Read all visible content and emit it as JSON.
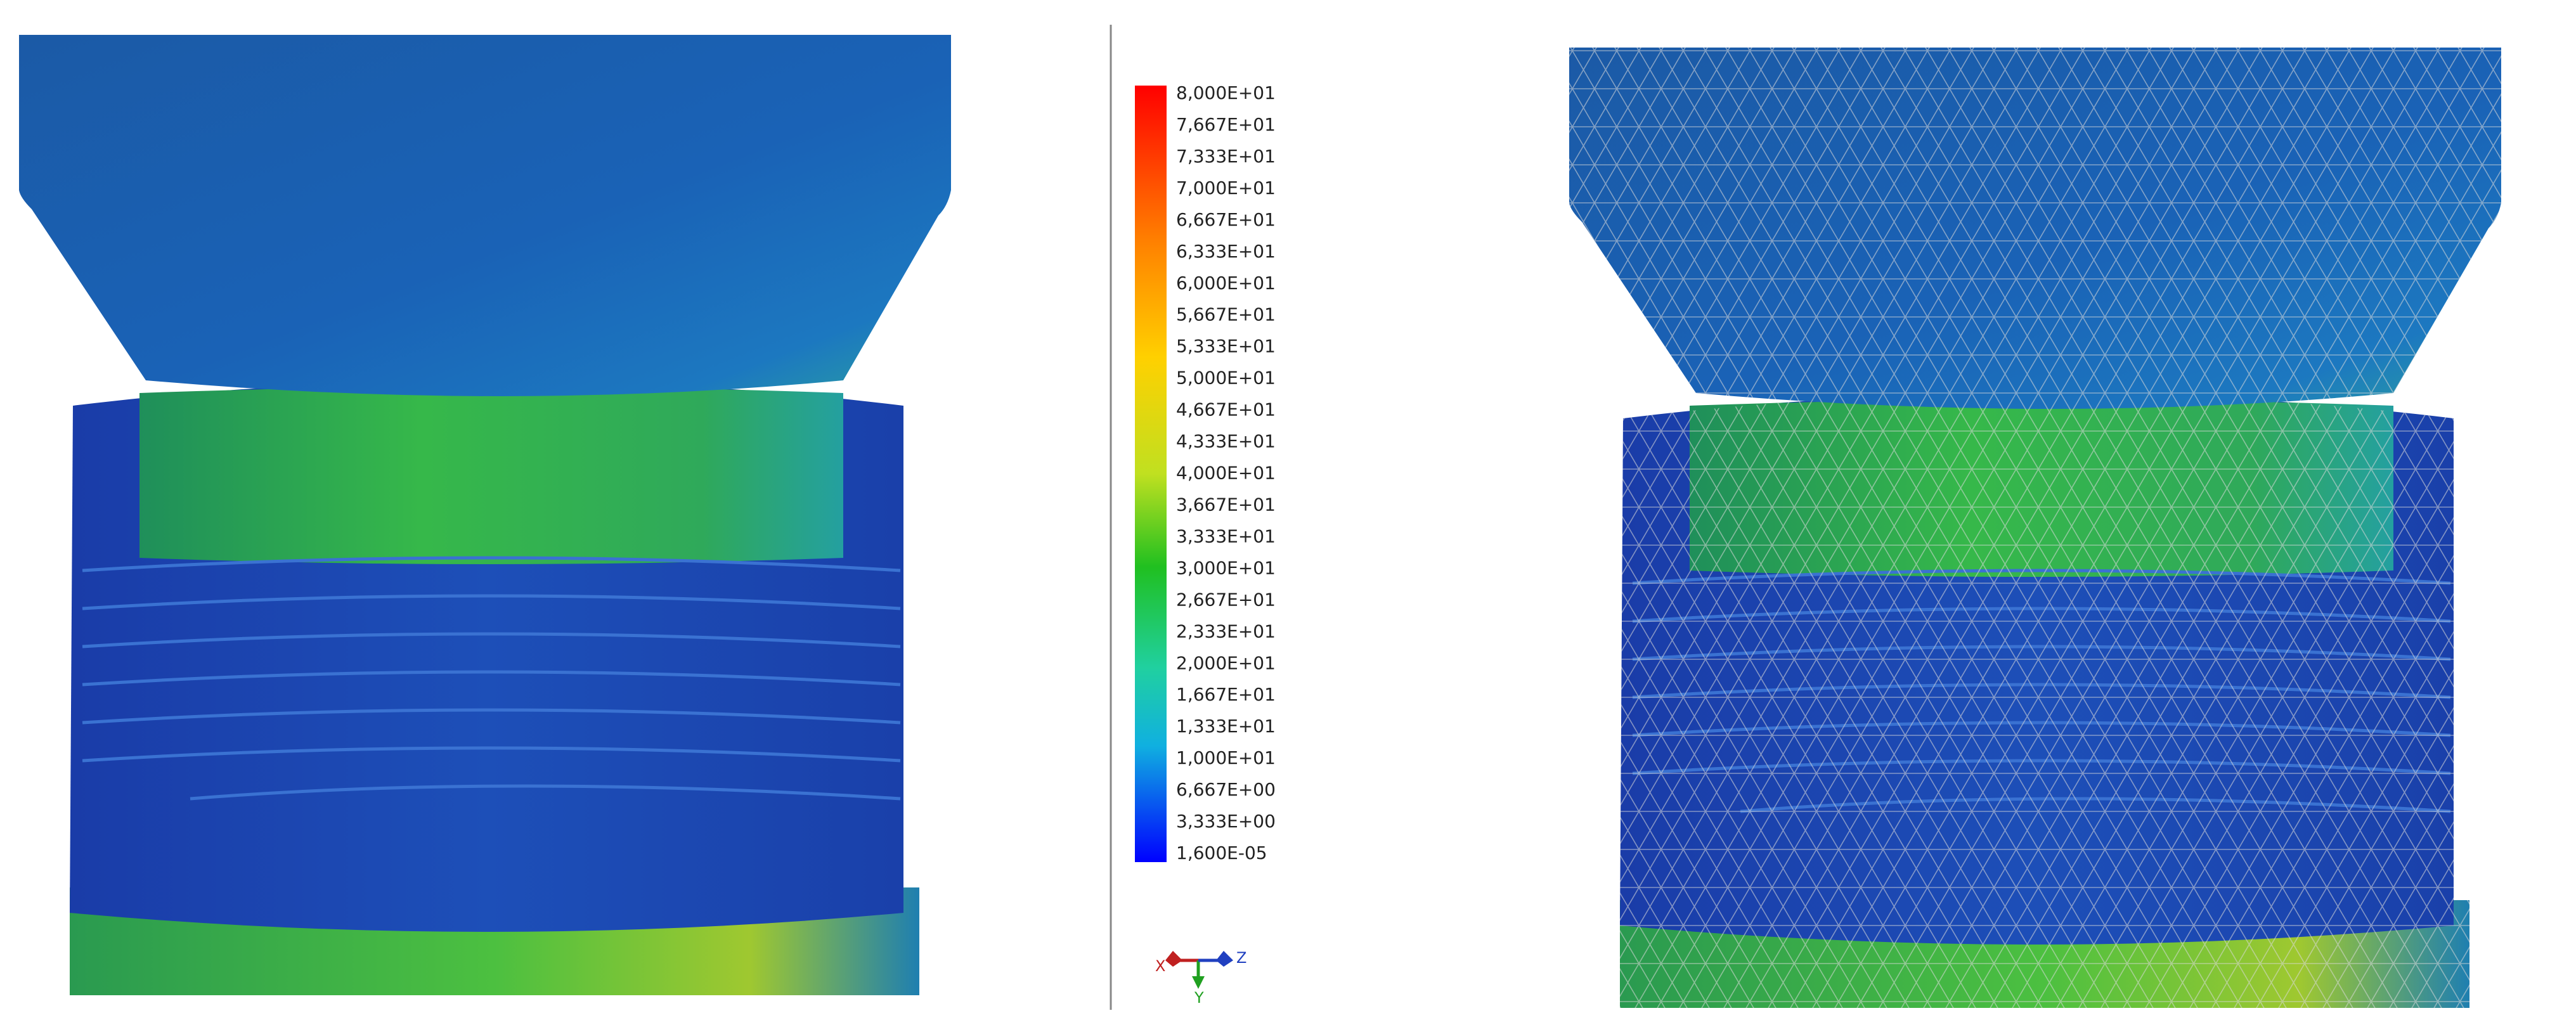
{
  "legend": {
    "labels": [
      "8,000E+01",
      "7,667E+01",
      "7,333E+01",
      "7,000E+01",
      "6,667E+01",
      "6,333E+01",
      "6,000E+01",
      "5,667E+01",
      "5,333E+01",
      "5,000E+01",
      "4,667E+01",
      "4,333E+01",
      "4,000E+01",
      "3,667E+01",
      "3,333E+01",
      "3,000E+01",
      "2,667E+01",
      "2,333E+01",
      "2,000E+01",
      "1,667E+01",
      "1,333E+01",
      "1,000E+01",
      "6,667E+00",
      "3,333E+00",
      "1,600E-05"
    ]
  },
  "triad": {
    "x": "X",
    "y": "Y",
    "z": "Z"
  }
}
